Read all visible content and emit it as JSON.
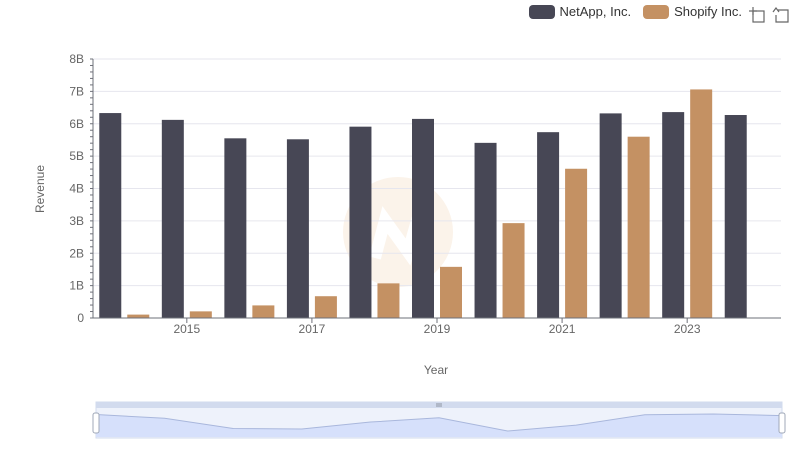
{
  "chart_data": {
    "type": "bar",
    "x": [
      "2014",
      "2015",
      "2016",
      "2017",
      "2018",
      "2019",
      "2020",
      "2021",
      "2022",
      "2023",
      "2024"
    ],
    "x_tick_labels": [
      "2015",
      "2017",
      "2019",
      "2021",
      "2023"
    ],
    "series": [
      {
        "name": "NetApp, Inc.",
        "color": "#474755",
        "values": [
          6.33,
          6.12,
          5.55,
          5.52,
          5.91,
          6.15,
          5.41,
          5.74,
          6.32,
          6.36,
          6.27
        ]
      },
      {
        "name": "Shopify Inc.",
        "color": "#c49163",
        "values": [
          0.105,
          0.205,
          0.389,
          0.673,
          1.07,
          1.58,
          2.93,
          4.61,
          5.6,
          7.06,
          null
        ]
      }
    ],
    "y_tick_labels": [
      "0",
      "1B",
      "2B",
      "3B",
      "4B",
      "5B",
      "6B",
      "7B",
      "8B"
    ],
    "ylim": [
      0,
      8
    ],
    "xlabel": "Year",
    "ylabel": "Revenue",
    "grid": true,
    "legend_position": "top-right"
  },
  "toolbox": {
    "zoom_icon": "zoom-select-icon",
    "restore_icon": "restore-icon"
  },
  "data_zoom": {
    "start": 0,
    "end": 100
  }
}
